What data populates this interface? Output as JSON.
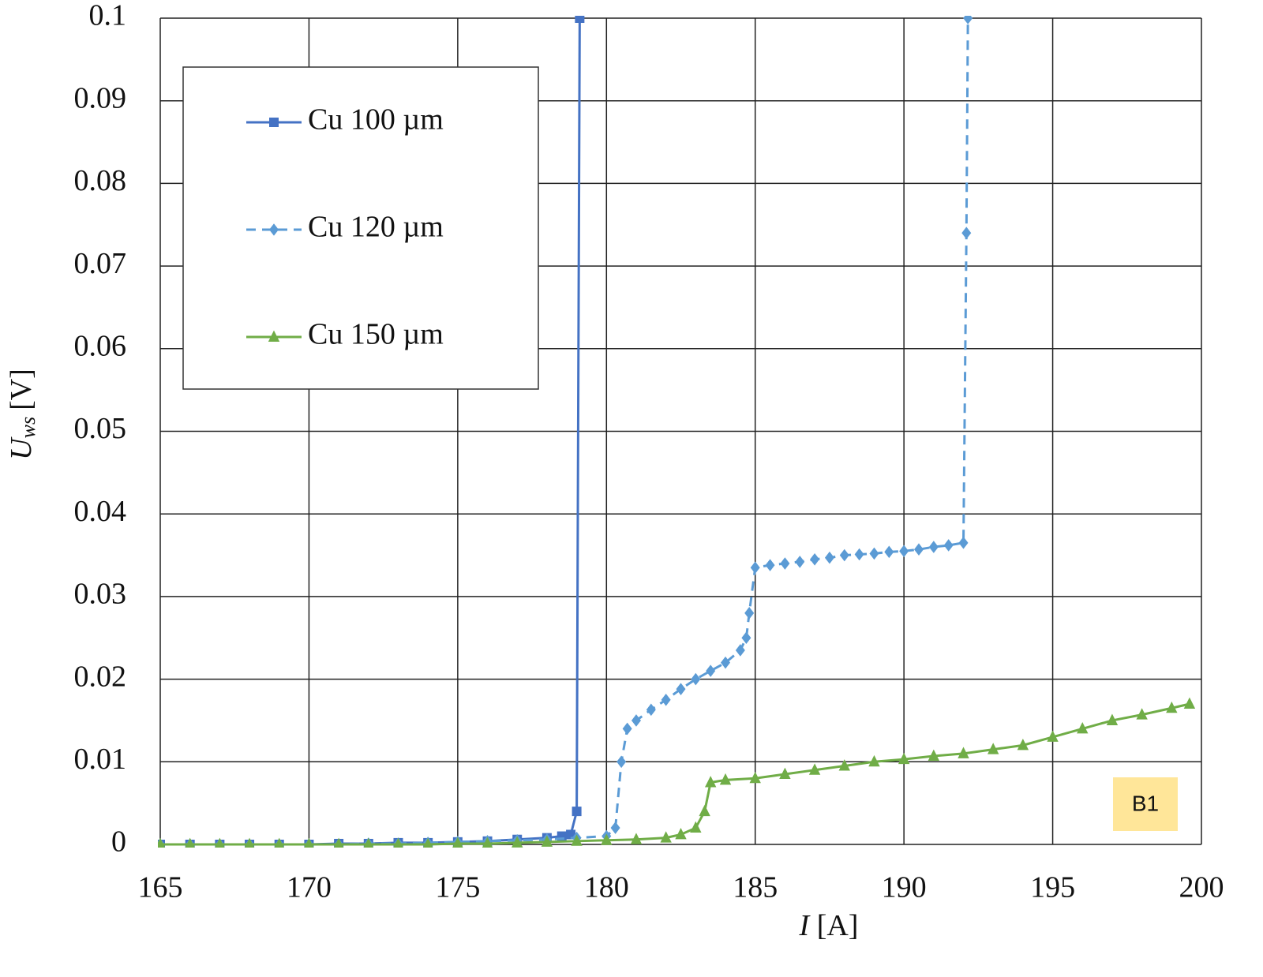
{
  "chart_data": {
    "type": "line",
    "xlabel": {
      "symbol": "I",
      "unit": "[A]"
    },
    "ylabel": {
      "symbol": "U",
      "subscript": "ws",
      "unit": "[V]"
    },
    "annotation": "B1",
    "xlim": [
      165,
      200
    ],
    "xticks": [
      165,
      170,
      175,
      180,
      185,
      190,
      195,
      200
    ],
    "ylim": [
      0,
      0.1
    ],
    "yticks": [
      0,
      0.01,
      0.02,
      0.03,
      0.04,
      0.05,
      0.06,
      0.07,
      0.08,
      0.09,
      0.1
    ],
    "grid": true,
    "legend": "upper left",
    "series": [
      {
        "name": "Cu 100 µm",
        "color": "#4472c4",
        "linestyle": "solid",
        "marker": "square",
        "x": [
          165,
          166,
          167,
          168,
          169,
          170,
          171,
          172,
          173,
          174,
          175,
          176,
          177,
          178,
          178.5,
          178.8,
          179.0,
          179.1
        ],
        "values": [
          0,
          0,
          0,
          0,
          0,
          0,
          0.0001,
          0.0001,
          0.0002,
          0.0002,
          0.0003,
          0.0004,
          0.0006,
          0.0008,
          0.001,
          0.0012,
          0.004,
          0.1
        ]
      },
      {
        "name": "Cu 120 µm",
        "color": "#5b9bd5",
        "linestyle": "dashed",
        "marker": "diamond",
        "x": [
          165,
          166,
          167,
          168,
          169,
          170,
          171,
          172,
          173,
          174,
          175,
          176,
          177,
          178,
          179,
          180,
          180.3,
          180.5,
          180.7,
          181,
          181.5,
          182,
          182.5,
          183,
          183.5,
          184,
          184.5,
          184.7,
          184.8,
          185,
          185.5,
          186,
          186.5,
          187,
          187.5,
          188,
          188.5,
          189,
          189.5,
          190,
          190.5,
          191,
          191.5,
          192,
          192.1,
          192.15
        ],
        "values": [
          0,
          0,
          0,
          0,
          0,
          0,
          0,
          0.0001,
          0.0001,
          0.0002,
          0.0003,
          0.0004,
          0.0005,
          0.0006,
          0.0008,
          0.001,
          0.002,
          0.01,
          0.014,
          0.015,
          0.0163,
          0.0175,
          0.0188,
          0.02,
          0.021,
          0.022,
          0.0235,
          0.025,
          0.028,
          0.0335,
          0.0338,
          0.034,
          0.0342,
          0.0345,
          0.0347,
          0.035,
          0.0351,
          0.0352,
          0.0354,
          0.0355,
          0.0357,
          0.036,
          0.0362,
          0.0365,
          0.074,
          0.1
        ]
      },
      {
        "name": "Cu 150 µm",
        "color": "#70ad47",
        "linestyle": "solid",
        "marker": "triangle",
        "x": [
          165,
          166,
          167,
          168,
          169,
          170,
          171,
          172,
          173,
          174,
          175,
          176,
          177,
          178,
          179,
          180,
          181,
          182,
          182.5,
          183,
          183.3,
          183.5,
          184,
          185,
          186,
          187,
          188,
          189,
          190,
          191,
          192,
          193,
          194,
          195,
          196,
          197,
          198,
          199,
          199.6
        ],
        "values": [
          0,
          0,
          0,
          0,
          0,
          0,
          0,
          0,
          0,
          0,
          0.0001,
          0.0001,
          0.0002,
          0.0003,
          0.0004,
          0.0005,
          0.0006,
          0.0008,
          0.0012,
          0.002,
          0.004,
          0.0075,
          0.0078,
          0.008,
          0.0085,
          0.009,
          0.0095,
          0.01,
          0.0103,
          0.0107,
          0.011,
          0.0115,
          0.012,
          0.013,
          0.014,
          0.015,
          0.0157,
          0.0165,
          0.017
        ]
      }
    ]
  }
}
